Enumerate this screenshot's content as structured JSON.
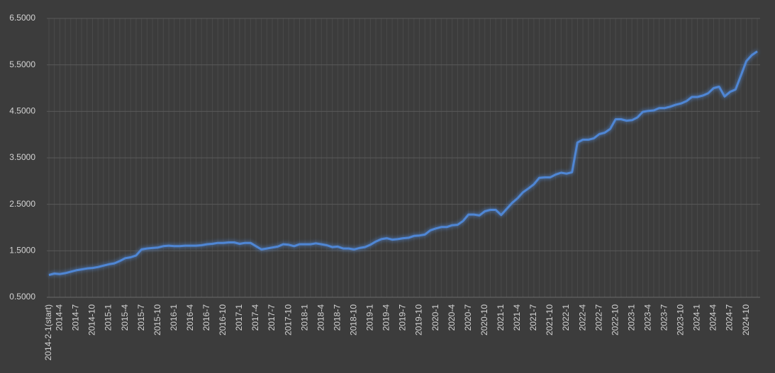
{
  "chart_data": {
    "type": "line",
    "categories": [
      "2014-2-1(start)",
      null,
      "2014-4",
      null,
      null,
      "2014-7",
      null,
      null,
      "2014-10",
      null,
      null,
      "2015-1",
      null,
      null,
      "2015-4",
      null,
      null,
      "2015-7",
      null,
      null,
      "2015-10",
      null,
      null,
      "2016-1",
      null,
      null,
      "2016-4",
      null,
      null,
      "2016-7",
      null,
      null,
      "2016-10",
      null,
      null,
      "2017-1",
      null,
      null,
      "2017-4",
      null,
      null,
      "2017-7",
      null,
      null,
      "2017-10",
      null,
      null,
      "2018-1",
      null,
      null,
      "2018-4",
      null,
      null,
      "2018-7",
      null,
      null,
      "2018-10",
      null,
      null,
      "2019-1",
      null,
      null,
      "2019-4",
      null,
      null,
      "2019-7",
      null,
      null,
      "2019-10",
      null,
      null,
      "2020-1",
      null,
      null,
      "2020-4",
      null,
      null,
      "2020-7",
      null,
      null,
      "2020-10",
      null,
      null,
      "2021-1",
      null,
      null,
      "2021-4",
      null,
      null,
      "2021-7",
      null,
      null,
      "2021-10",
      null,
      null,
      "2022-1",
      null,
      null,
      "2022-4",
      null,
      null,
      "2022-7",
      null,
      null,
      "2022-10",
      null,
      null,
      "2023-1",
      null,
      null,
      "2023-4",
      null,
      null,
      "2023-7",
      null,
      null,
      "2023-10",
      null,
      null,
      "2024-1",
      null,
      null,
      "2024-4",
      null,
      null,
      "2024-7",
      null,
      null,
      "2024-10",
      null,
      null
    ],
    "series": [
      {
        "color": "#4f86d4",
        "values": [
          0.98,
          1.01,
          1.0,
          1.02,
          1.05,
          1.08,
          1.1,
          1.12,
          1.13,
          1.15,
          1.18,
          1.21,
          1.23,
          1.28,
          1.34,
          1.36,
          1.4,
          1.53,
          1.55,
          1.56,
          1.57,
          1.6,
          1.61,
          1.6,
          1.6,
          1.61,
          1.61,
          1.61,
          1.62,
          1.64,
          1.65,
          1.67,
          1.67,
          1.68,
          1.68,
          1.65,
          1.67,
          1.67,
          1.6,
          1.53,
          1.55,
          1.57,
          1.59,
          1.64,
          1.63,
          1.6,
          1.64,
          1.64,
          1.64,
          1.66,
          1.64,
          1.62,
          1.58,
          1.59,
          1.55,
          1.55,
          1.53,
          1.56,
          1.58,
          1.63,
          1.7,
          1.75,
          1.77,
          1.74,
          1.75,
          1.77,
          1.78,
          1.82,
          1.83,
          1.85,
          1.94,
          1.98,
          2.01,
          2.01,
          2.05,
          2.06,
          2.14,
          2.28,
          2.28,
          2.26,
          2.35,
          2.38,
          2.38,
          2.27,
          2.4,
          2.53,
          2.63,
          2.76,
          2.84,
          2.93,
          3.07,
          3.08,
          3.08,
          3.14,
          3.18,
          3.16,
          3.19,
          3.83,
          3.89,
          3.89,
          3.92,
          4.01,
          4.04,
          4.12,
          4.33,
          4.33,
          4.3,
          4.31,
          4.37,
          4.49,
          4.51,
          4.52,
          4.57,
          4.57,
          4.6,
          4.64,
          4.67,
          4.72,
          4.81,
          4.81,
          4.84,
          4.89,
          5.0,
          5.03,
          4.82,
          4.92,
          4.97,
          5.27,
          5.58,
          5.71,
          5.79
        ]
      }
    ],
    "ylim": [
      0.5,
      6.5
    ],
    "yticks": [
      {
        "value": 0.5,
        "label": "0.5000"
      },
      {
        "value": 1.5,
        "label": "1.5000"
      },
      {
        "value": 2.5,
        "label": "2.5000"
      },
      {
        "value": 3.5,
        "label": "3.5000"
      },
      {
        "value": 4.5,
        "label": "4.5000"
      },
      {
        "value": 5.5,
        "label": "5.5000"
      },
      {
        "value": 6.5,
        "label": "6.5000"
      }
    ],
    "grid": true
  }
}
